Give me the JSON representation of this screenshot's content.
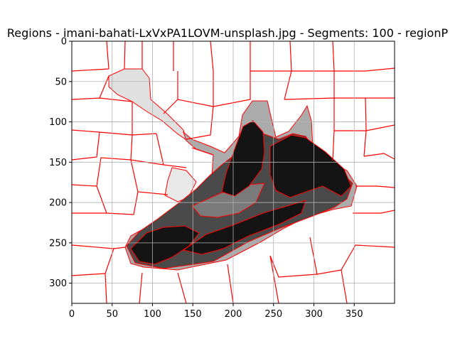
{
  "chart_data": {
    "type": "heatmap",
    "title": "Regions - imani-bahati-LxVxPA1LOVM-unsplash.jpg - Segments: 100 - regionP",
    "xlabel": "",
    "ylabel": "",
    "xlim": [
      0,
      400
    ],
    "ylim": [
      325,
      0
    ],
    "x_ticks": [
      0,
      50,
      100,
      150,
      200,
      250,
      300,
      350
    ],
    "y_ticks": [
      0,
      50,
      100,
      150,
      200,
      250,
      300
    ],
    "grid": true,
    "colors": {
      "background": "#ffffff",
      "boundary": "#ff0000",
      "grid": "#b0b0b0",
      "shades": [
        "#ffffff",
        "#e0e0e0",
        "#ababab",
        "#7a7a7a",
        "#4a4a4a",
        "#141414"
      ]
    }
  }
}
